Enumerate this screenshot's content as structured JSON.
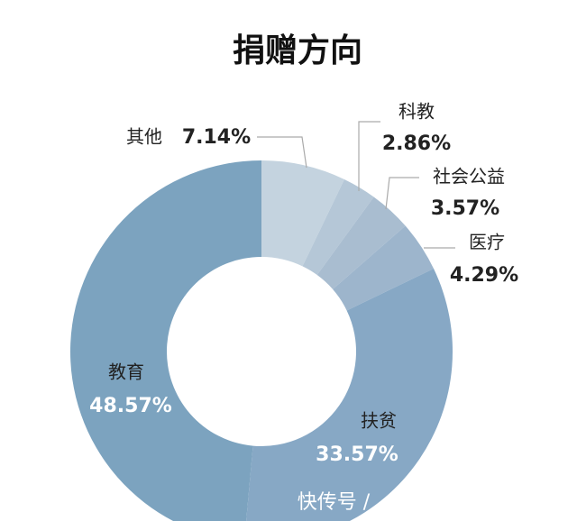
{
  "chart_data": {
    "type": "pie",
    "title": "捐赠方向",
    "categories": [
      "其他",
      "科教",
      "社会公益",
      "医疗",
      "扶贫",
      "教育"
    ],
    "values": [
      7.14,
      2.86,
      3.57,
      4.29,
      33.57,
      48.57
    ],
    "value_labels": [
      "7.14%",
      "2.86%",
      "3.57%",
      "4.29%",
      "33.57%",
      "48.57%"
    ],
    "colors": [
      "#c4d3df",
      "#b5c7d7",
      "#a9bdd0",
      "#9db5cc",
      "#87a8c5",
      "#7ca3bf"
    ]
  },
  "watermark": "快传号 /"
}
